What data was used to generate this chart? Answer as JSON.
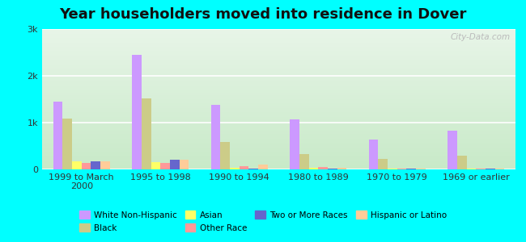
{
  "title": "Year householders moved into residence in Dover",
  "background_color": "#00FFFF",
  "categories": [
    "1999 to March\n2000",
    "1995 to 1998",
    "1990 to 1994",
    "1980 to 1989",
    "1970 to 1979",
    "1969 or earlier"
  ],
  "series": [
    {
      "name": "White Non-Hispanic",
      "values": [
        1450,
        2450,
        1380,
        1070,
        640,
        820
      ],
      "color": "#cc99ff"
    },
    {
      "name": "Black",
      "values": [
        1080,
        1520,
        590,
        330,
        220,
        290
      ],
      "color": "#cccc88"
    },
    {
      "name": "Asian",
      "values": [
        170,
        160,
        30,
        30,
        10,
        10
      ],
      "color": "#ffff66"
    },
    {
      "name": "Other Race",
      "values": [
        130,
        140,
        70,
        50,
        20,
        20
      ],
      "color": "#ff9999"
    },
    {
      "name": "Two or More Races",
      "values": [
        180,
        200,
        20,
        20,
        10,
        10
      ],
      "color": "#6666cc"
    },
    {
      "name": "Hispanic or Latino",
      "values": [
        180,
        210,
        110,
        30,
        20,
        20
      ],
      "color": "#ffcc99"
    }
  ],
  "ylim": [
    0,
    3000
  ],
  "yticks": [
    0,
    1000,
    2000,
    3000
  ],
  "ytick_labels": [
    "0",
    "1k",
    "2k",
    "3k"
  ],
  "watermark": "City-Data.com",
  "title_fontsize": 13,
  "tick_fontsize": 8,
  "legend_fontsize": 7.5,
  "legend_order": [
    "White Non-Hispanic",
    "Black",
    "Asian",
    "Other Race",
    "Two or More Races",
    "Hispanic or Latino"
  ],
  "legend_ncol": 4
}
